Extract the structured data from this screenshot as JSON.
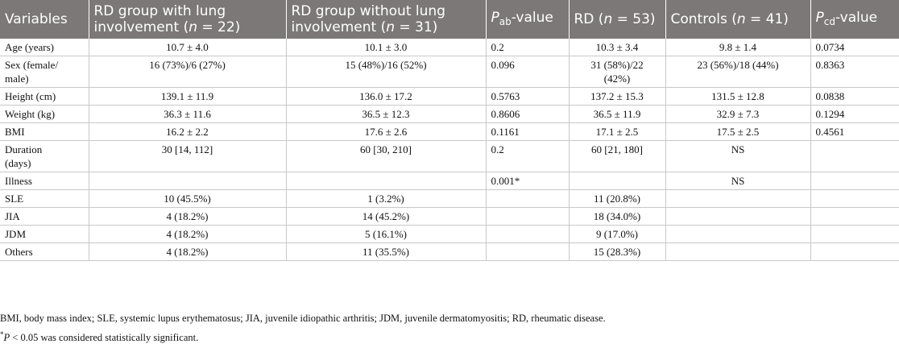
{
  "table": {
    "headers": [
      {
        "text": "Variables"
      },
      {
        "pre": "RD group with lung involvement (",
        "ital": "n",
        "post": " = 22)"
      },
      {
        "pre": "RD group without lung involvement (",
        "ital": "n",
        "post": " = 31)"
      },
      {
        "ital": "P",
        "subscript": "ab",
        "post": "-value"
      },
      {
        "pre": "RD (",
        "ital": "n",
        "post": " = 53)"
      },
      {
        "pre": "Controls (",
        "ital": "n",
        "post": " = 41)"
      },
      {
        "ital": "P",
        "subscript": "cd",
        "post": "-value"
      }
    ],
    "rows": [
      [
        "Age (years)",
        "10.7 ± 4.0",
        "10.1 ± 3.0",
        "0.2",
        "10.3 ± 3.4",
        "9.8 ± 1.4",
        "0.0734"
      ],
      [
        "Sex (female/\nmale)",
        "16 (73%)/6 (27%)",
        "15 (48%)/16 (52%)",
        "0.096",
        "31 (58%)/22\n(42%)",
        "23 (56%)/18 (44%)",
        "0.8363"
      ],
      [
        "Height (cm)",
        "139.1 ± 11.9",
        "136.0 ± 17.2",
        "0.5763",
        "137.2 ± 15.3",
        "131.5 ± 12.8",
        "0.0838"
      ],
      [
        "Weight (kg)",
        "36.3 ± 11.6",
        "36.5 ± 12.3",
        "0.8606",
        "36.5 ± 11.9",
        "32.9 ± 7.3",
        "0.1294"
      ],
      [
        "BMI",
        "16.2 ± 2.2",
        "17.6 ± 2.6",
        "0.1161",
        "17.1 ± 2.5",
        "17.5 ± 2.5",
        "0.4561"
      ],
      [
        "Duration\n(days)",
        "30 [14, 112]",
        "60 [30, 210]",
        "0.2",
        "60 [21, 180]",
        "NS",
        ""
      ],
      [
        "Illness",
        "",
        "",
        "0.001*",
        "",
        "NS",
        ""
      ],
      [
        "SLE",
        "10 (45.5%)",
        "1 (3.2%)",
        "",
        "11 (20.8%)",
        "",
        ""
      ],
      [
        "JIA",
        "4 (18.2%)",
        "14 (45.2%)",
        "",
        "18 (34.0%)",
        "",
        ""
      ],
      [
        "JDM",
        "4 (18.2%)",
        "5 (16.1%)",
        "",
        "9 (17.0%)",
        "",
        ""
      ],
      [
        "Others",
        "4 (18.2%)",
        "11 (35.5%)",
        "",
        "15 (28.3%)",
        "",
        ""
      ]
    ]
  },
  "footnotes": {
    "abbreviations": "BMI, body mass index; SLE, systemic lupus erythematosus; JIA, juvenile idiopathic arthritis; JDM, juvenile dermatomyositis; RD, rheumatic disease.",
    "significance_mark": "*",
    "significance_var": "P",
    "significance_text": " < 0.05 was considered statistically significant."
  }
}
